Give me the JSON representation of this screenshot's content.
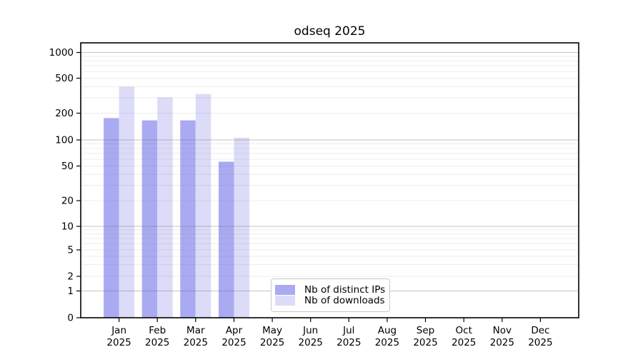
{
  "chart_data": {
    "type": "bar",
    "title": "odseq 2025",
    "categories": [
      "Jan",
      "Feb",
      "Mar",
      "Apr",
      "May",
      "Jun",
      "Jul",
      "Aug",
      "Sep",
      "Oct",
      "Nov",
      "Dec"
    ],
    "x_tick_year": "2025",
    "series": [
      {
        "name": "Nb of distinct IPs",
        "color": "#aaaaf2",
        "values": [
          176,
          166,
          166,
          56,
          0,
          0,
          0,
          0,
          0,
          0,
          0,
          0
        ]
      },
      {
        "name": "Nb of downloads",
        "color": "#dcdcf8",
        "values": [
          400,
          303,
          330,
          106,
          0,
          0,
          0,
          0,
          0,
          0,
          0,
          0
        ]
      }
    ],
    "y_axis": {
      "scale": "log",
      "tick_labels": [
        "1000",
        "500",
        "200",
        "100",
        "50",
        "20",
        "10",
        "5",
        "2",
        "1",
        "0"
      ]
    },
    "grid": true,
    "legend_position": "bottom-center-inside"
  }
}
